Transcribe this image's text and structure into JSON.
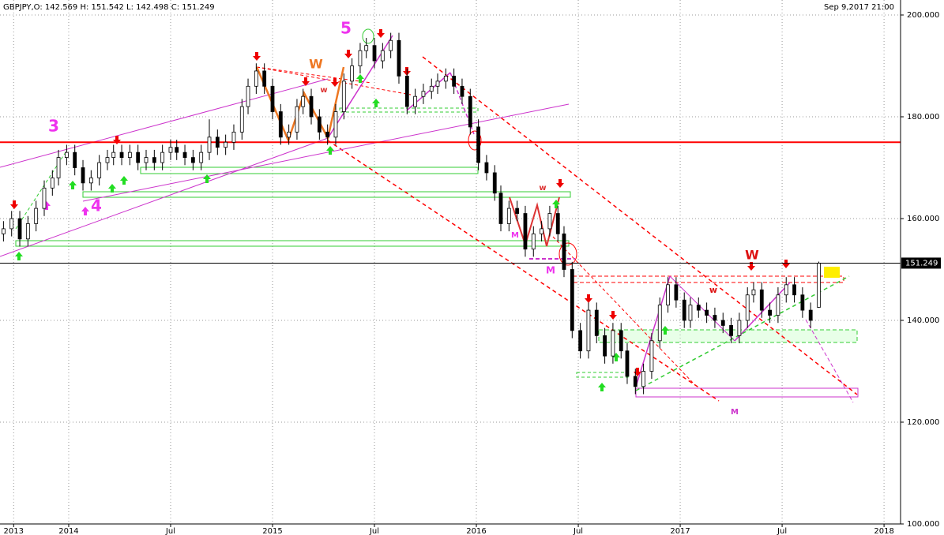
{
  "chart_data": {
    "type": "candlestick",
    "header": "GBPJPY,O: 142.569  H: 151.542  L: 142.498  C: 151.249",
    "timestamp": "Sep 9,2017 21:00",
    "last_price": {
      "value": 151.249,
      "label": "151.249"
    },
    "xlim": [
      2013.663,
      2018.081
    ],
    "ylim": [
      100,
      200
    ],
    "xticks": [
      {
        "value": 2013.73,
        "label": "2013"
      },
      2014,
      {
        "value": 2014.5,
        "label": "Jul"
      },
      2015,
      {
        "value": 2015.5,
        "label": "Jul"
      },
      2016,
      {
        "value": 2016.5,
        "label": "Jul"
      },
      2017,
      {
        "value": 2017.5,
        "label": "Jul"
      },
      2018
    ],
    "yticks": [
      {
        "value": 100,
        "label": "100.000"
      },
      {
        "value": 120,
        "label": "120.000"
      },
      {
        "value": 140,
        "label": "140.000"
      },
      {
        "value": 160,
        "label": "160.000"
      },
      {
        "value": 180,
        "label": "180.000"
      },
      {
        "value": 200,
        "label": "200.000"
      }
    ],
    "grid": true,
    "up_color": "#ffffff",
    "down_color": "#000000",
    "resistance": {
      "value": 175,
      "color": "#ff0000"
    },
    "annotations": [
      "3",
      "4",
      "5",
      "W",
      "w",
      "w",
      "M",
      "M",
      "W",
      "w",
      "M"
    ],
    "x": [
      2013.68,
      2013.72,
      2013.76,
      2013.8,
      2013.84,
      2013.88,
      2013.92,
      2013.95,
      2013.99,
      2014.03,
      2014.07,
      2014.11,
      2014.15,
      2014.19,
      2014.22,
      2014.26,
      2014.3,
      2014.34,
      2014.38,
      2014.42,
      2014.46,
      2014.5,
      2014.53,
      2014.57,
      2014.61,
      2014.65,
      2014.69,
      2014.73,
      2014.77,
      2014.81,
      2014.85,
      2014.88,
      2014.92,
      2014.96,
      2015.0,
      2015.04,
      2015.08,
      2015.12,
      2015.15,
      2015.19,
      2015.23,
      2015.27,
      2015.31,
      2015.35,
      2015.39,
      2015.43,
      2015.46,
      2015.5,
      2015.54,
      2015.58,
      2015.62,
      2015.66,
      2015.7,
      2015.74,
      2015.78,
      2015.81,
      2015.85,
      2015.89,
      2015.93,
      2015.97,
      2016.01,
      2016.05,
      2016.09,
      2016.12,
      2016.16,
      2016.2,
      2016.24,
      2016.28,
      2016.32,
      2016.36,
      2016.4,
      2016.43,
      2016.47,
      2016.51,
      2016.55,
      2016.59,
      2016.63,
      2016.67,
      2016.71,
      2016.74,
      2016.78,
      2016.82,
      2016.86,
      2016.9,
      2016.94,
      2016.98,
      2017.02,
      2017.05,
      2017.09,
      2017.13,
      2017.17,
      2017.21,
      2017.25,
      2017.29,
      2017.33,
      2017.36,
      2017.4,
      2017.44,
      2017.48,
      2017.52,
      2017.56,
      2017.6,
      2017.64,
      2017.68
    ],
    "candles": [
      [
        157,
        159.5,
        155.5,
        158
      ],
      [
        158,
        161.5,
        156.5,
        160
      ],
      [
        160,
        161.5,
        154.5,
        156
      ],
      [
        156,
        160.5,
        154.5,
        159
      ],
      [
        159,
        163.5,
        157.5,
        162
      ],
      [
        162,
        167.5,
        160.5,
        166
      ],
      [
        166,
        169.5,
        164.5,
        168
      ],
      [
        168,
        173.5,
        166.5,
        172
      ],
      [
        172,
        174.5,
        170.5,
        173
      ],
      [
        173,
        174.5,
        168.5,
        170
      ],
      [
        170,
        171.5,
        165.5,
        167
      ],
      [
        167,
        169.5,
        165.5,
        168
      ],
      [
        168,
        172.5,
        166.5,
        171
      ],
      [
        171,
        173.5,
        169.5,
        172
      ],
      [
        172,
        174.5,
        170.5,
        173
      ],
      [
        173,
        174.5,
        170.5,
        172
      ],
      [
        172,
        174.5,
        170.5,
        173
      ],
      [
        173,
        174.5,
        169.5,
        171
      ],
      [
        171,
        173.5,
        169.5,
        172
      ],
      [
        172,
        173.5,
        169.5,
        171
      ],
      [
        171,
        174.5,
        169.5,
        173
      ],
      [
        173,
        175.5,
        171.5,
        174
      ],
      [
        174,
        175.5,
        171.5,
        173
      ],
      [
        173,
        174.5,
        170.5,
        172
      ],
      [
        172,
        173.5,
        169.5,
        171
      ],
      [
        171,
        174.5,
        169.5,
        173
      ],
      [
        173,
        179.5,
        171.5,
        176
      ],
      [
        176,
        177.5,
        172.5,
        174
      ],
      [
        174,
        176.5,
        172.5,
        175
      ],
      [
        175,
        178.5,
        173.5,
        177
      ],
      [
        177,
        183.5,
        175.5,
        182
      ],
      [
        182,
        187.5,
        180.5,
        186
      ],
      [
        186,
        190.5,
        184.5,
        189
      ],
      [
        189,
        190.5,
        184.5,
        186
      ],
      [
        186,
        187.5,
        179.5,
        181
      ],
      [
        181,
        182.5,
        174.5,
        176
      ],
      [
        176,
        178.5,
        174.5,
        177
      ],
      [
        177,
        183.5,
        175.5,
        182
      ],
      [
        182,
        185.5,
        180.5,
        184
      ],
      [
        184,
        185.5,
        178.5,
        180
      ],
      [
        180,
        181.5,
        175.5,
        177
      ],
      [
        177,
        178.5,
        174.5,
        176
      ],
      [
        176,
        182.5,
        174.5,
        181
      ],
      [
        181,
        188.5,
        179.5,
        187
      ],
      [
        187,
        191.5,
        185.5,
        190
      ],
      [
        190,
        194.5,
        188.5,
        193
      ],
      [
        193,
        195.5,
        191.5,
        194
      ],
      [
        194,
        195.5,
        189.5,
        191
      ],
      [
        191,
        194.5,
        189.5,
        193
      ],
      [
        193,
        196.5,
        191.5,
        195
      ],
      [
        195,
        196.5,
        186.5,
        188
      ],
      [
        188,
        189.5,
        180.5,
        182
      ],
      [
        182,
        185.5,
        180.5,
        184
      ],
      [
        184,
        186.5,
        182.5,
        185
      ],
      [
        185,
        187.5,
        183.5,
        186
      ],
      [
        186,
        188.5,
        184.5,
        187
      ],
      [
        187,
        189.5,
        185.5,
        188
      ],
      [
        188,
        189.5,
        184.5,
        186
      ],
      [
        186,
        187.5,
        182.5,
        184
      ],
      [
        184,
        185.5,
        176.5,
        178
      ],
      [
        178,
        179.5,
        169.5,
        171
      ],
      [
        171,
        172.5,
        167.5,
        169
      ],
      [
        169,
        170.5,
        163.5,
        165
      ],
      [
        165,
        166.5,
        157.5,
        159
      ],
      [
        159,
        163.5,
        157.5,
        162
      ],
      [
        162,
        163.5,
        159.5,
        161
      ],
      [
        161,
        162.5,
        152.5,
        154
      ],
      [
        154,
        158.5,
        152.5,
        157
      ],
      [
        157,
        159.5,
        155.5,
        158
      ],
      [
        158,
        162.5,
        156.5,
        161
      ],
      [
        161,
        162.5,
        155.5,
        157
      ],
      [
        157,
        158.5,
        148.5,
        150
      ],
      [
        150,
        151.5,
        136.5,
        138
      ],
      [
        138,
        139.5,
        132.5,
        134
      ],
      [
        134,
        143.5,
        132.5,
        142
      ],
      [
        142,
        143.5,
        135.5,
        137
      ],
      [
        137,
        138.5,
        131.5,
        133
      ],
      [
        133,
        139.5,
        131.5,
        138
      ],
      [
        138,
        139.5,
        132.5,
        134
      ],
      [
        134,
        135.5,
        127.5,
        129
      ],
      [
        129,
        130.5,
        125.5,
        127
      ],
      [
        127,
        131.5,
        125.5,
        130
      ],
      [
        130,
        137.5,
        128.5,
        136
      ],
      [
        136,
        144.5,
        134.5,
        143
      ],
      [
        143,
        148.5,
        141.5,
        147
      ],
      [
        147,
        148.5,
        142.5,
        144
      ],
      [
        144,
        145.5,
        138.5,
        140
      ],
      [
        140,
        144.5,
        138.5,
        143
      ],
      [
        143,
        144.5,
        140.5,
        142
      ],
      [
        142,
        143.5,
        139.5,
        141
      ],
      [
        141,
        142.5,
        138.5,
        140
      ],
      [
        140,
        141.5,
        137.5,
        139
      ],
      [
        139,
        140.5,
        135.5,
        137
      ],
      [
        137,
        141.5,
        135.5,
        140
      ],
      [
        140,
        146.5,
        138.5,
        145
      ],
      [
        145,
        147.5,
        143.5,
        146
      ],
      [
        146,
        147.5,
        140.5,
        142
      ],
      [
        142,
        143.5,
        139.5,
        141
      ],
      [
        141,
        146.5,
        139.5,
        145
      ],
      [
        145,
        148.5,
        143.5,
        147
      ],
      [
        147,
        148.5,
        143.5,
        145
      ],
      [
        145,
        146.5,
        140.5,
        142
      ],
      [
        142,
        143.5,
        138.5,
        140
      ],
      [
        142.569,
        151.542,
        142.498,
        151.249
      ]
    ]
  }
}
